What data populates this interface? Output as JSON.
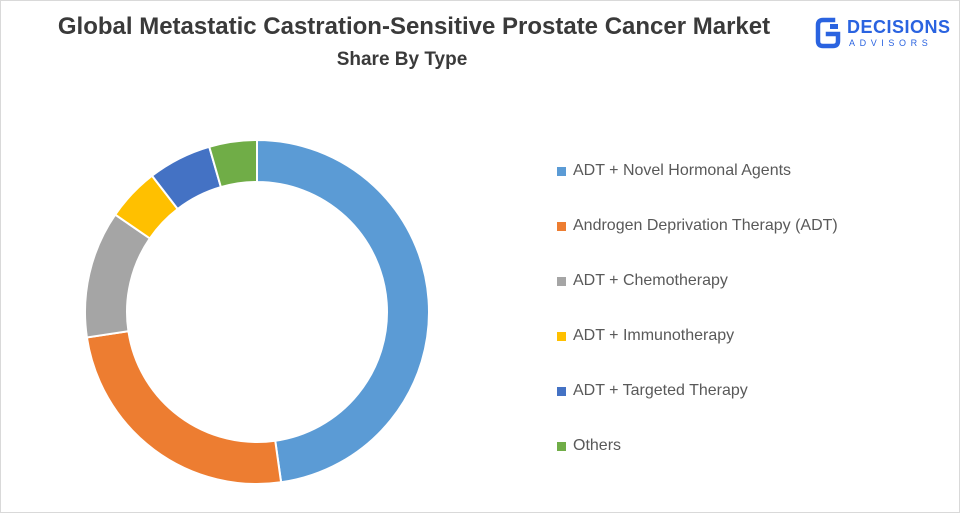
{
  "logo": {
    "name": "DECISIONS",
    "tagline": "ADVISORS",
    "color": "#2a63e0"
  },
  "chart_data": {
    "type": "pie",
    "subtype": "donut",
    "title": "Global Metastatic Castration-Sensitive Prostate Cancer Market",
    "subtitle": "Share By Type",
    "legend_position": "right",
    "categories": [
      "ADT + Novel Hormonal Agents",
      "Androgen Deprivation Therapy (ADT)",
      "ADT + Chemotherapy",
      "ADT + Immunotherapy",
      "ADT + Targeted Therapy",
      "Others"
    ],
    "values": [
      48,
      25,
      12,
      5,
      6,
      4.5
    ],
    "colors": [
      "#5b9bd5",
      "#ed7d31",
      "#a5a5a5",
      "#ffc000",
      "#4472c4",
      "#70ad47"
    ]
  }
}
